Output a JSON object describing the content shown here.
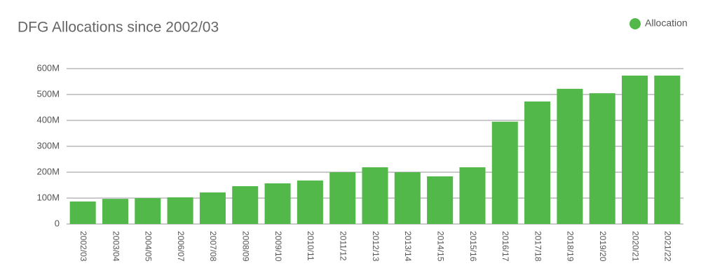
{
  "chart_data": {
    "type": "bar",
    "title": "DFG Allocations since 2002/03",
    "categories": [
      "2002/03",
      "2003/04",
      "2004/05",
      "2006/07",
      "2007/08",
      "2008/09",
      "2009/10",
      "2010/11",
      "2011/12",
      "2012/13",
      "2013/14",
      "2014/15",
      "2015/16",
      "2016/17",
      "2017/18",
      "2018/19",
      "2019/20",
      "2020/21",
      "2021/22"
    ],
    "series": [
      {
        "name": "Allocation",
        "color": "#52b84a",
        "values": [
          87000000,
          97000000,
          100000000,
          103000000,
          122000000,
          146000000,
          157000000,
          168000000,
          200000000,
          219000000,
          200000000,
          184000000,
          219000000,
          395000000,
          473000000,
          522000000,
          505000000,
          573000000,
          573000000
        ]
      }
    ],
    "ylim": [
      0,
      600000000
    ],
    "yticks": [
      0,
      {
        "value": 100000000,
        "label": "100M"
      },
      {
        "value": 200000000,
        "label": "200M"
      },
      {
        "value": 300000000,
        "label": "300M"
      },
      {
        "value": 400000000,
        "label": "400M"
      },
      {
        "value": 500000000,
        "label": "500M"
      },
      {
        "value": 600000000,
        "label": "600M"
      }
    ],
    "grid": true,
    "legend": "top-right"
  }
}
